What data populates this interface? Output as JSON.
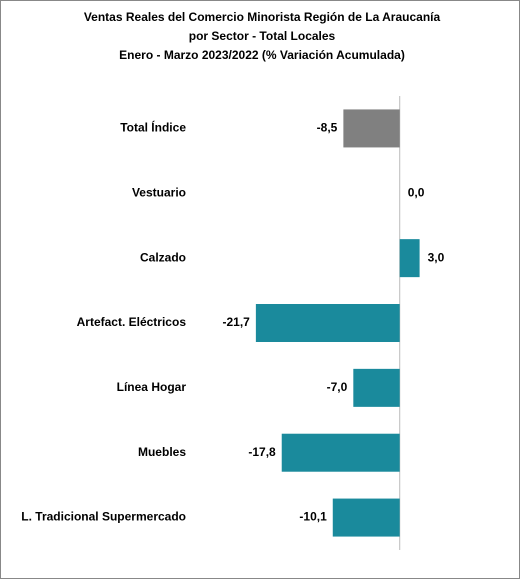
{
  "chart_data": {
    "type": "barh",
    "title": [
      "Ventas Reales del Comercio Minorista Región de La Araucanía",
      "por Sector - Total Locales",
      "Enero - Marzo 2023/2022 (% Variación Acumulada)"
    ],
    "categories": [
      "Total Índice",
      "Vestuario",
      "Calzado",
      "Artefact. Eléctricos",
      "Línea Hogar",
      "Muebles",
      "L. Tradicional Supermercado"
    ],
    "values": [
      -8.5,
      0.0,
      3.0,
      -21.7,
      -7.0,
      -17.8,
      -10.1
    ],
    "value_labels": [
      "-8,5",
      "0,0",
      "3,0",
      "-21,7",
      "-7,0",
      "-17,8",
      "-10,1"
    ],
    "colors": [
      "#808080",
      "#1a8a9c",
      "#1a8a9c",
      "#1a8a9c",
      "#1a8a9c",
      "#1a8a9c",
      "#1a8a9c"
    ],
    "xlim": [
      -25,
      10
    ]
  }
}
